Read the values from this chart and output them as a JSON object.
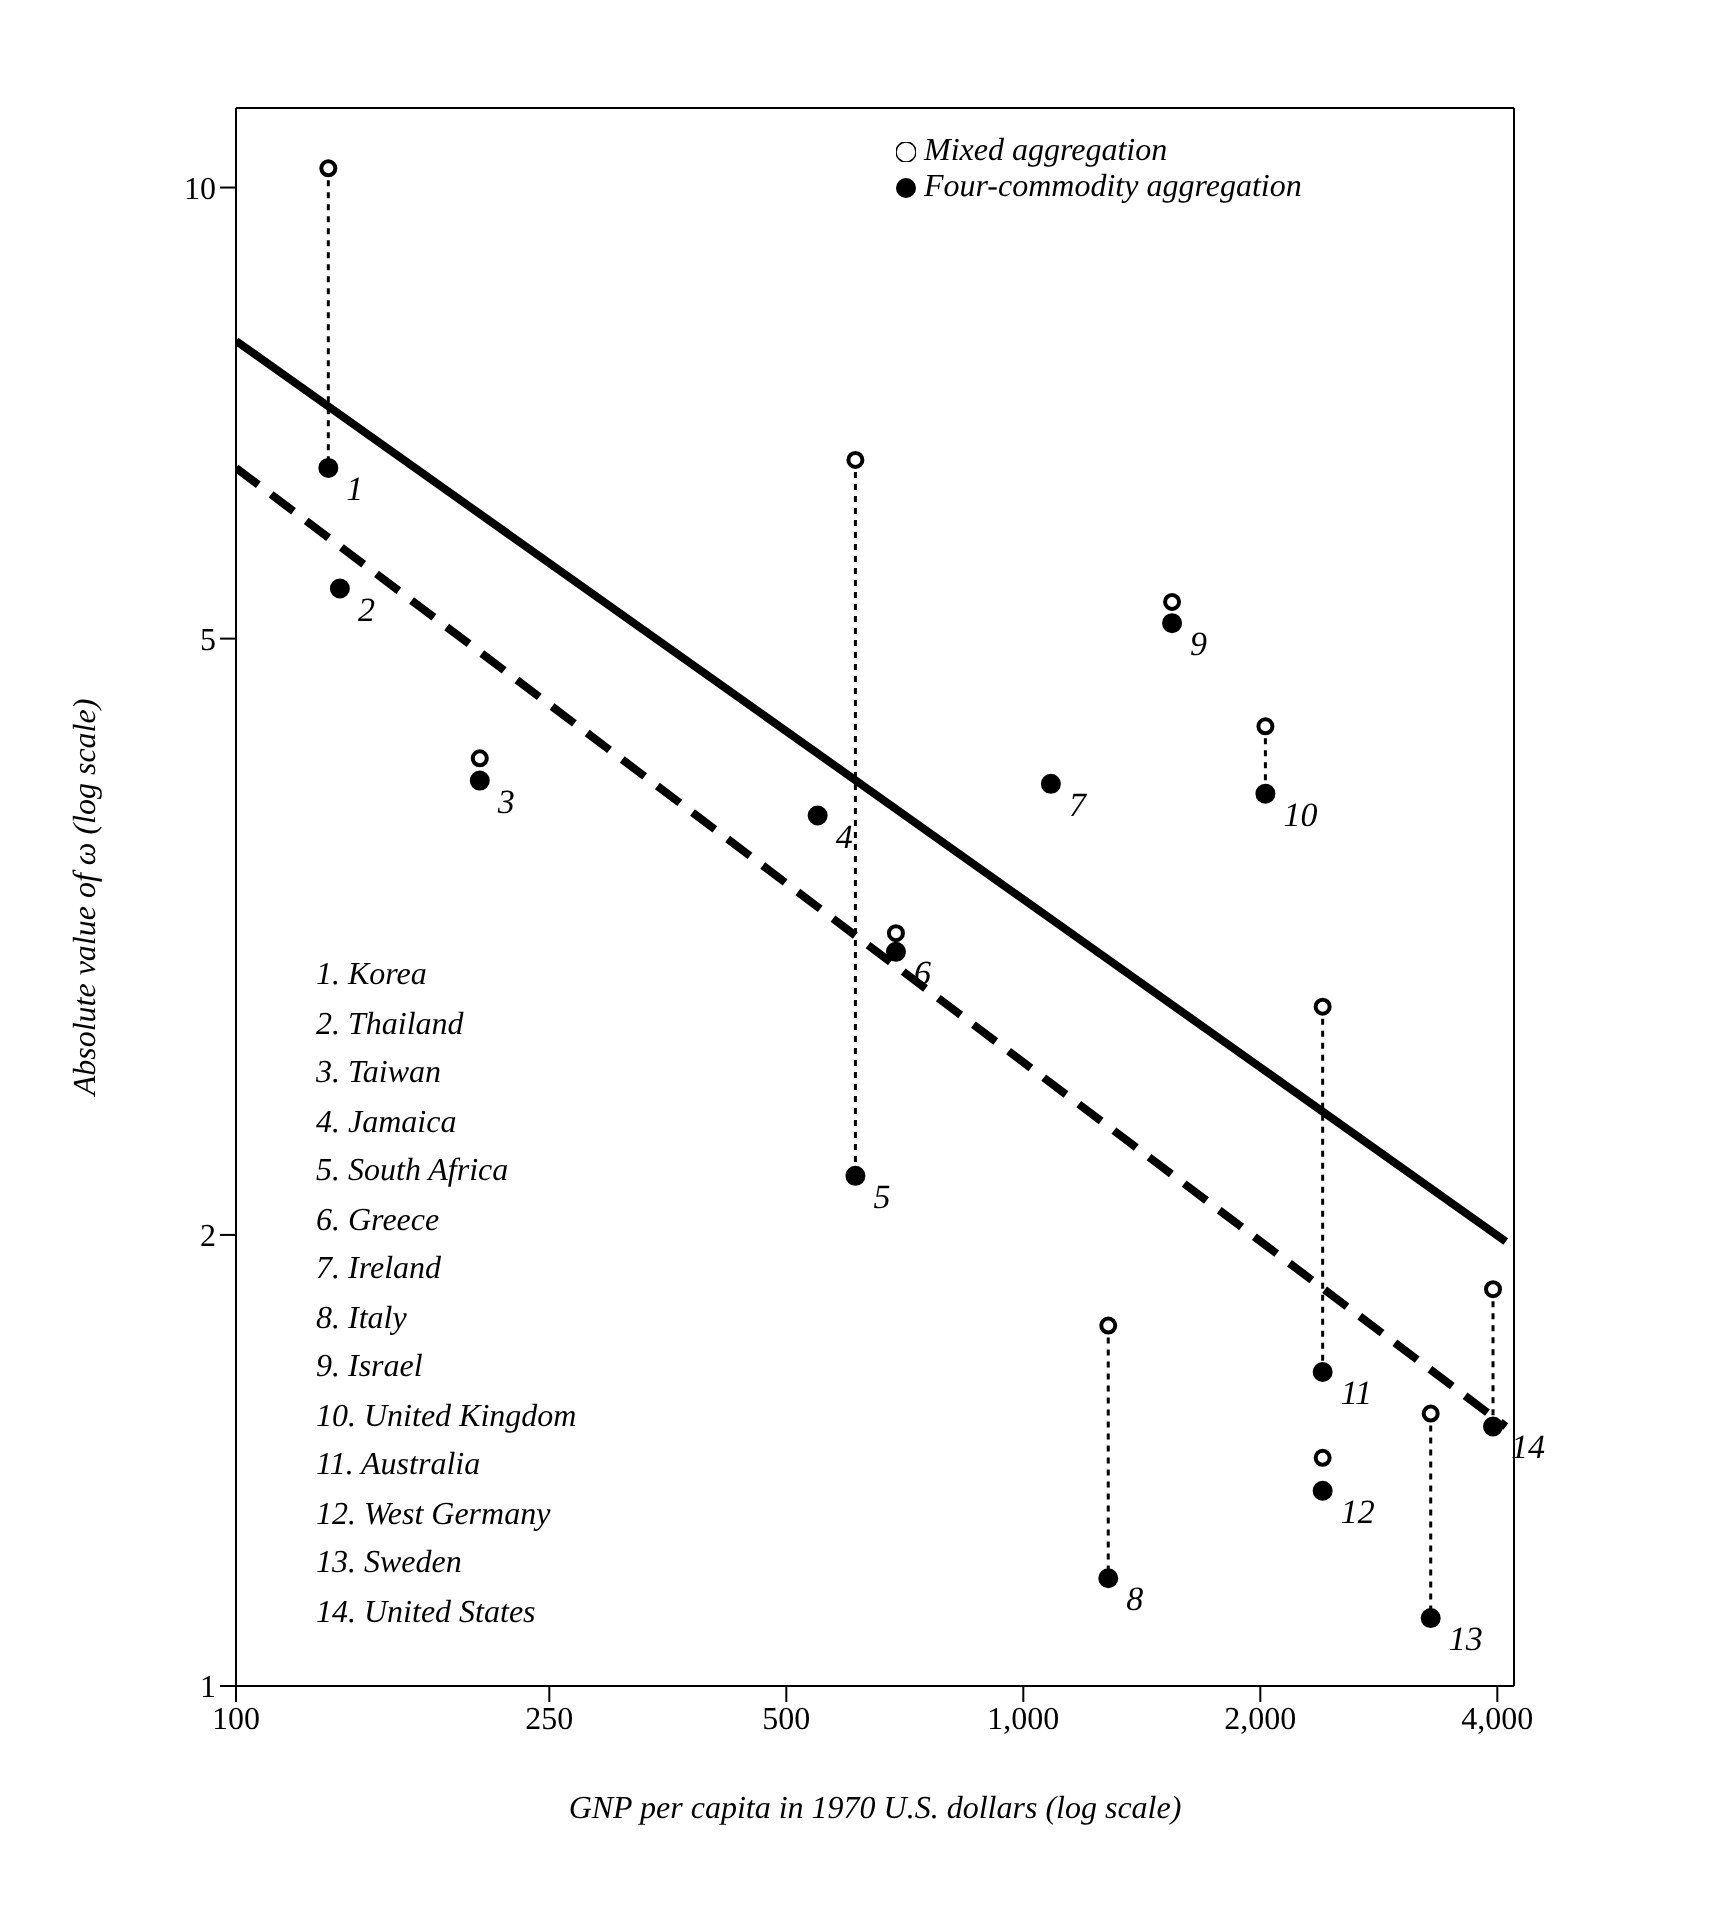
{
  "chart_data": {
    "type": "scatter",
    "xlabel": "GNP per capita in 1970 U.S. dollars (log scale)",
    "ylabel": "Absolute value of ω (log scale)",
    "log": "xy",
    "xlim": [
      100,
      4200
    ],
    "ylim": [
      1,
      11.3
    ],
    "xticks": [
      100,
      250,
      500,
      {
        "value": 1000,
        "label": "1,000"
      },
      {
        "value": 2000,
        "label": "2,000"
      },
      {
        "value": 4000,
        "label": "4,000"
      }
    ],
    "yticks": [
      1,
      2,
      5,
      10
    ],
    "grid": false,
    "legend": "top right",
    "series": [
      {
        "name": "Mixed aggregation",
        "marker": "circle",
        "color": "#000000",
        "x": [
          131,
          135.5,
          204,
          548,
          612,
          689,
          1084,
          1282,
          1545,
          2030,
          2400,
          2400,
          3292,
          3950
        ],
        "values": [
          10.3,
          null,
          4.16,
          null,
          6.58,
          3.18,
          null,
          1.74,
          5.29,
          4.37,
          2.84,
          1.42,
          1.52,
          1.84
        ]
      },
      {
        "type": "line",
        "line_style": "solid",
        "color": "#000000",
        "x": [
          100,
          4100
        ],
        "values": [
          7.9,
          1.98
        ]
      },
      {
        "name": "Four-commodity aggregation",
        "marker": "circle",
        "color": "#000000",
        "x": [
          131,
          135.5,
          204,
          548,
          612,
          689,
          1084,
          1282,
          1545,
          2030,
          2400,
          2400,
          3292,
          3950
        ],
        "values": [
          6.5,
          5.4,
          4.02,
          3.81,
          2.19,
          3.09,
          4.0,
          1.18,
          5.12,
          3.94,
          1.62,
          1.35,
          1.11,
          1.49
        ]
      },
      {
        "type": "line",
        "line_style": "dashed",
        "color": "#000000",
        "x": [
          100,
          4100
        ],
        "values": [
          6.5,
          1.49
        ]
      },
      {
        "type": "line",
        "line_style": "dotted",
        "color": "#000000",
        "x": [
          131,
          131
        ],
        "values": [
          10.3,
          6.5
        ]
      },
      {
        "type": "line",
        "line_style": "dotted",
        "color": "#000000",
        "x": [
          612,
          612
        ],
        "values": [
          6.58,
          2.19
        ]
      },
      {
        "type": "line",
        "line_style": "dotted",
        "color": "#000000",
        "x": [
          1282,
          1282
        ],
        "values": [
          1.74,
          1.18
        ]
      },
      {
        "type": "line",
        "line_style": "dotted",
        "color": "#000000",
        "x": [
          2030,
          2030
        ],
        "values": [
          4.37,
          3.94
        ]
      },
      {
        "type": "line",
        "line_style": "dotted",
        "color": "#000000",
        "x": [
          2400,
          2400
        ],
        "values": [
          2.84,
          1.62
        ]
      },
      {
        "type": "line",
        "line_style": "dotted",
        "color": "#000000",
        "x": [
          3292,
          3292
        ],
        "values": [
          1.52,
          1.11
        ]
      },
      {
        "type": "line",
        "line_style": "dotted",
        "color": "#000000",
        "x": [
          3950,
          3950
        ],
        "values": [
          1.84,
          1.49
        ]
      }
    ],
    "annotations": [
      {
        "text": "1",
        "x": 131,
        "y": 6.5
      },
      {
        "text": "2",
        "x": 135.5,
        "y": 5.4
      },
      {
        "text": "3",
        "x": 204,
        "y": 4.02
      },
      {
        "text": "4",
        "x": 548,
        "y": 3.81
      },
      {
        "text": "5",
        "x": 612,
        "y": 2.19
      },
      {
        "text": "6",
        "x": 689,
        "y": 3.09
      },
      {
        "text": "7",
        "x": 1084,
        "y": 4.0
      },
      {
        "text": "8",
        "x": 1282,
        "y": 1.18
      },
      {
        "text": "9",
        "x": 1545,
        "y": 5.12
      },
      {
        "text": "10",
        "x": 2030,
        "y": 3.94
      },
      {
        "text": "11",
        "x": 2400,
        "y": 1.62
      },
      {
        "text": "12",
        "x": 2400,
        "y": 1.35
      },
      {
        "text": "13",
        "x": 3292,
        "y": 1.11
      },
      {
        "text": "14",
        "x": 3950,
        "y": 1.49
      },
      "1. Korea",
      "2. Thailand",
      "3. Taiwan",
      "4. Jamaica",
      "5. South Africa",
      "6. Greece",
      "7. Ireland",
      "8. Italy",
      "9. Israel",
      "10. United Kingdom",
      "11. Australia",
      "12. West Germany",
      "13. Sweden",
      "14. United States"
    ]
  }
}
